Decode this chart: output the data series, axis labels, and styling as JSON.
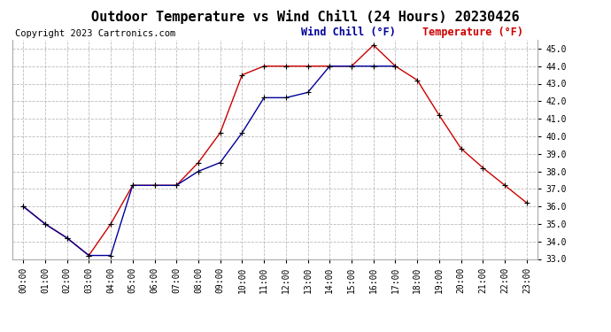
{
  "title": "Outdoor Temperature vs Wind Chill (24 Hours) 20230426",
  "copyright": "Copyright 2023 Cartronics.com",
  "legend_wind_chill": "Wind Chill (°F)",
  "legend_temperature": "Temperature (°F)",
  "hours": [
    0,
    1,
    2,
    3,
    4,
    5,
    6,
    7,
    8,
    9,
    10,
    11,
    12,
    13,
    14,
    15,
    16,
    17,
    18,
    19,
    20,
    21,
    22,
    23
  ],
  "temperature": [
    36.0,
    35.0,
    34.2,
    33.2,
    35.0,
    37.2,
    37.2,
    37.2,
    38.5,
    40.2,
    43.5,
    44.0,
    44.0,
    44.0,
    44.0,
    44.0,
    45.2,
    44.0,
    43.2,
    41.2,
    39.3,
    38.2,
    37.2,
    36.2
  ],
  "wind_chill": [
    36.0,
    35.0,
    34.2,
    33.2,
    33.2,
    37.2,
    37.2,
    37.2,
    38.0,
    38.5,
    40.2,
    42.2,
    42.2,
    42.5,
    44.0,
    44.0,
    44.0,
    44.0,
    null,
    null,
    null,
    null,
    null,
    null
  ],
  "temp_color": "#cc0000",
  "wind_color": "#000099",
  "bg_color": "#ffffff",
  "grid_color": "#bbbbbb",
  "ylim": [
    33.0,
    45.5
  ],
  "yticks": [
    33.0,
    34.0,
    35.0,
    36.0,
    37.0,
    38.0,
    39.0,
    40.0,
    41.0,
    42.0,
    43.0,
    44.0,
    45.0
  ],
  "title_fontsize": 11,
  "copyright_fontsize": 7.5,
  "legend_fontsize": 8.5,
  "tick_fontsize": 7,
  "line_width": 1.0,
  "marker_size": 4
}
